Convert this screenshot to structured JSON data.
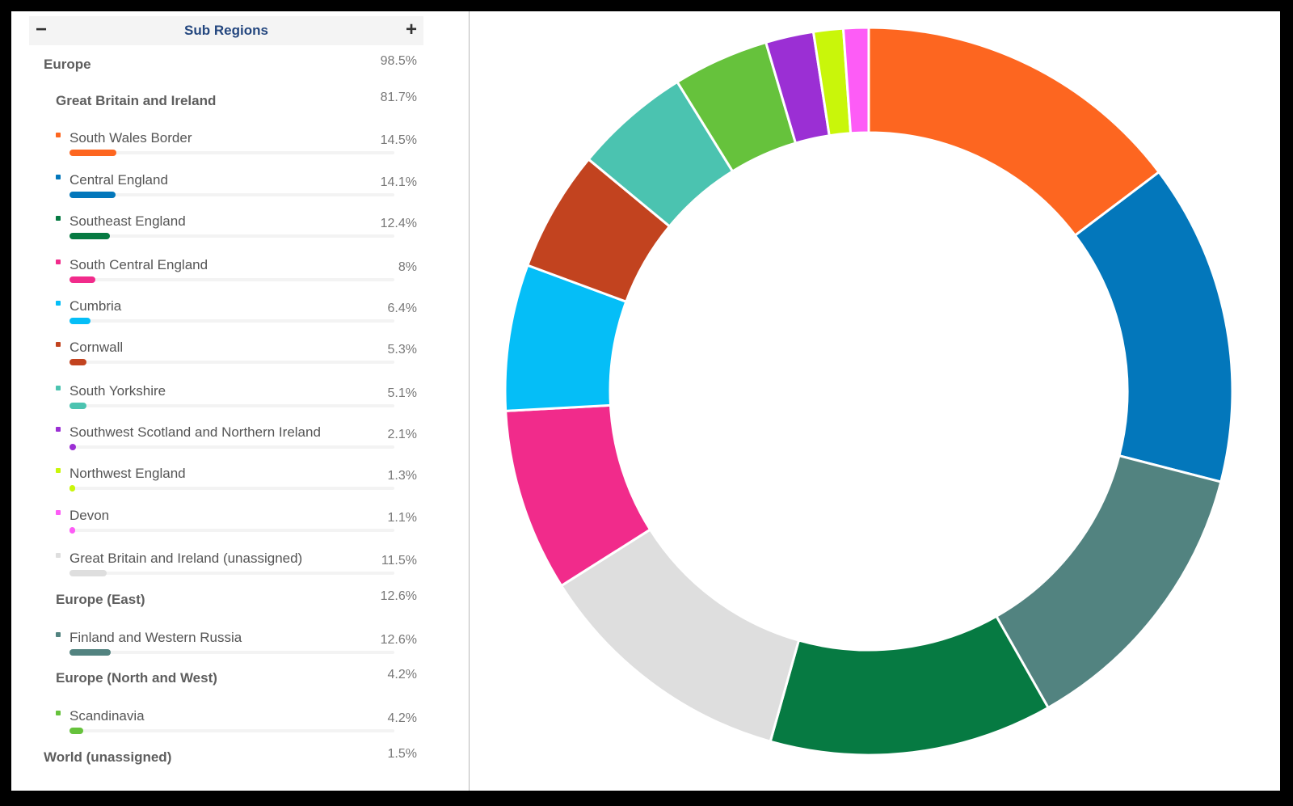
{
  "panel": {
    "title": "Sub Regions",
    "collapse_icon": "minus-icon",
    "expand_icon": "plus-icon",
    "collapse_symbol": "−",
    "expand_symbol": "+"
  },
  "rows": [
    {
      "label": "Europe",
      "pct": "98.5%",
      "level": 0
    },
    {
      "label": "Great Britain and Ireland",
      "pct": "81.7%",
      "level": 1
    },
    {
      "label": "South Wales Border",
      "pct": "14.5%",
      "level": 2,
      "value": 14.5,
      "color": "#fd6620"
    },
    {
      "label": "Central England",
      "pct": "14.1%",
      "level": 2,
      "value": 14.1,
      "color": "#0377bb"
    },
    {
      "label": "Southeast England",
      "pct": "12.4%",
      "level": 2,
      "value": 12.4,
      "color": "#067a42"
    },
    {
      "label": "South Central England",
      "pct": "8%",
      "level": 2,
      "value": 8.0,
      "color": "#f12b8b"
    },
    {
      "label": "Cumbria",
      "pct": "6.4%",
      "level": 2,
      "value": 6.4,
      "color": "#05bef7"
    },
    {
      "label": "Cornwall",
      "pct": "5.3%",
      "level": 2,
      "value": 5.3,
      "color": "#c2431f"
    },
    {
      "label": "South Yorkshire",
      "pct": "5.1%",
      "level": 2,
      "value": 5.1,
      "color": "#4bc3b0"
    },
    {
      "label": "Southwest Scotland and Northern Ireland",
      "pct": "2.1%",
      "level": 2,
      "value": 2.1,
      "color": "#9b2fd4"
    },
    {
      "label": "Northwest England",
      "pct": "1.3%",
      "level": 2,
      "value": 1.3,
      "color": "#c9f60a"
    },
    {
      "label": "Devon",
      "pct": "1.1%",
      "level": 2,
      "value": 1.1,
      "color": "#fd5cf6"
    },
    {
      "label": "Great Britain and Ireland (unassigned)",
      "pct": "11.5%",
      "level": 2,
      "value": 11.5,
      "color": "#dedede"
    },
    {
      "label": "Europe (East)",
      "pct": "12.6%",
      "level": 1
    },
    {
      "label": "Finland and Western Russia",
      "pct": "12.6%",
      "level": 2,
      "value": 12.6,
      "color": "#528380"
    },
    {
      "label": "Europe (North and West)",
      "pct": "4.2%",
      "level": 1
    },
    {
      "label": "Scandinavia",
      "pct": "4.2%",
      "level": 2,
      "value": 4.2,
      "color": "#66c23c"
    },
    {
      "label": "World (unassigned)",
      "pct": "1.5%",
      "level": 0
    }
  ],
  "chart_data": {
    "type": "pie",
    "variant": "donut",
    "start": "top (12 o'clock), clockwise",
    "slices": [
      {
        "label": "South Wales Border",
        "value": 14.5,
        "color": "#fd6620"
      },
      {
        "label": "Central England",
        "value": 14.1,
        "color": "#0377bb"
      },
      {
        "label": "Finland and Western Russia",
        "value": 12.6,
        "color": "#528380"
      },
      {
        "label": "Southeast England",
        "value": 12.4,
        "color": "#067a42"
      },
      {
        "label": "Great Britain and Ireland (unassigned)",
        "value": 11.5,
        "color": "#dedede"
      },
      {
        "label": "South Central England",
        "value": 8.0,
        "color": "#f12b8b"
      },
      {
        "label": "Cumbria",
        "value": 6.4,
        "color": "#05bef7"
      },
      {
        "label": "Cornwall",
        "value": 5.3,
        "color": "#c2431f"
      },
      {
        "label": "South Yorkshire",
        "value": 5.1,
        "color": "#4bc3b0"
      },
      {
        "label": "Scandinavia",
        "value": 4.2,
        "color": "#66c23c"
      },
      {
        "label": "Southwest Scotland and Northern Ireland",
        "value": 2.1,
        "color": "#9b2fd4"
      },
      {
        "label": "Northwest England",
        "value": 1.3,
        "color": "#c9f60a"
      },
      {
        "label": "Devon",
        "value": 1.1,
        "color": "#fd5cf6"
      }
    ]
  }
}
